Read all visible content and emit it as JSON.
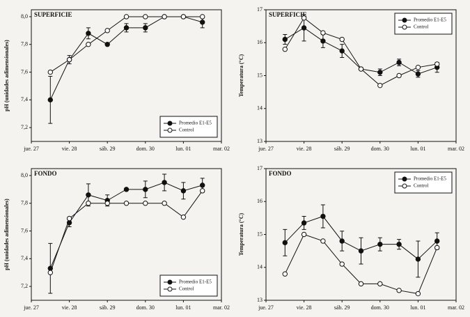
{
  "chart_data": [
    {
      "type": "line",
      "title": "SUPERFICIE",
      "y_label": "pH (unidades adimensionales)",
      "x": [
        0.5,
        1,
        1.5,
        2,
        2.5,
        3,
        3.5,
        4,
        4.5
      ],
      "xlim": [
        0,
        5
      ],
      "xticks": [
        {
          "value": 0,
          "label": "jue. 27"
        },
        {
          "value": 1,
          "label": "vie. 28"
        },
        {
          "value": 2,
          "label": "sáb. 29"
        },
        {
          "value": 3,
          "label": "dom. 30"
        },
        {
          "value": 4,
          "label": "lun. 01"
        },
        {
          "value": 5,
          "label": "mar. 02"
        }
      ],
      "ylim": [
        7.1,
        8.05
      ],
      "yticks": [
        {
          "value": 7.2,
          "label": "7,2"
        },
        {
          "value": 7.4,
          "label": "7,4"
        },
        {
          "value": 7.6,
          "label": "7,6"
        },
        {
          "value": 7.8,
          "label": "7,8"
        },
        {
          "value": 8.0,
          "label": "8,0"
        }
      ],
      "legend": "lower right",
      "series": [
        {
          "name": "Promedio E1-E5",
          "color": "#111111",
          "values": [
            7.4,
            7.69,
            7.88,
            7.8,
            7.92,
            7.92,
            8.0,
            8.0,
            7.96
          ],
          "errors": [
            0.17,
            0.03,
            0.04,
            0,
            0.03,
            0.03,
            0,
            0,
            0.04
          ]
        },
        {
          "name": "Control",
          "color": "#ffffff",
          "values": [
            7.6,
            7.69,
            7.8,
            7.9,
            8.0,
            8.0,
            8.0,
            8.0,
            8.0
          ]
        }
      ]
    },
    {
      "type": "line",
      "title": "SUPERFICIE",
      "y_label": "Temperatura (°C)",
      "x": [
        0.5,
        1,
        1.5,
        2,
        2.5,
        3,
        3.5,
        4,
        4.5
      ],
      "xlim": [
        0,
        5
      ],
      "xticks": [
        {
          "value": 0,
          "label": "jue. 27"
        },
        {
          "value": 1,
          "label": "vie. 28"
        },
        {
          "value": 2,
          "label": "sáb. 29"
        },
        {
          "value": 3,
          "label": "dom. 30"
        },
        {
          "value": 4,
          "label": "lun. 01"
        },
        {
          "value": 5,
          "label": "mar. 02"
        }
      ],
      "ylim": [
        13,
        17
      ],
      "yticks": [
        13,
        14,
        15,
        16,
        17
      ],
      "legend": "upper right",
      "series": [
        {
          "name": "Promedio E1-E5",
          "color": "#111111",
          "values": [
            16.1,
            16.45,
            16.05,
            15.75,
            15.2,
            15.1,
            15.4,
            15.05,
            15.25
          ],
          "errors": [
            0.15,
            0.4,
            0.2,
            0.2,
            0,
            0.1,
            0.1,
            0.1,
            0.15
          ]
        },
        {
          "name": "Control",
          "color": "#ffffff",
          "values": [
            15.8,
            16.75,
            16.3,
            16.1,
            15.2,
            14.7,
            15.0,
            15.25,
            15.35
          ]
        }
      ]
    },
    {
      "type": "line",
      "title": "FONDO",
      "y_label": "pH (unidades adimensionales)",
      "x": [
        0.5,
        1,
        1.5,
        2,
        2.5,
        3,
        3.5,
        4,
        4.5
      ],
      "xlim": [
        0,
        5
      ],
      "xticks": [
        {
          "value": 0,
          "label": "jue. 27"
        },
        {
          "value": 1,
          "label": "vie. 28"
        },
        {
          "value": 2,
          "label": "sáb. 29"
        },
        {
          "value": 3,
          "label": "dom. 30"
        },
        {
          "value": 4,
          "label": "lun. 01"
        },
        {
          "value": 5,
          "label": "mar. 02"
        }
      ],
      "ylim": [
        7.1,
        8.05
      ],
      "yticks": [
        {
          "value": 7.2,
          "label": "7,2"
        },
        {
          "value": 7.4,
          "label": "7,4"
        },
        {
          "value": 7.6,
          "label": "7,6"
        },
        {
          "value": 7.8,
          "label": "7,8"
        },
        {
          "value": 8.0,
          "label": "8,0"
        }
      ],
      "legend": "lower right",
      "series": [
        {
          "name": "Promedio E1-E5",
          "color": "#111111",
          "values": [
            7.33,
            7.66,
            7.86,
            7.82,
            7.9,
            7.9,
            7.95,
            7.89,
            7.93
          ],
          "errors": [
            0.18,
            0.03,
            0.08,
            0.04,
            0,
            0.06,
            0.06,
            0.06,
            0.05
          ]
        },
        {
          "name": "Control",
          "color": "#ffffff",
          "values": [
            7.3,
            7.69,
            7.8,
            7.8,
            7.8,
            7.8,
            7.8,
            7.7,
            7.89
          ]
        }
      ]
    },
    {
      "type": "line",
      "title": "FONDO",
      "y_label": "Temperatura (°C)",
      "x": [
        0.5,
        1,
        1.5,
        2,
        2.5,
        3,
        3.5,
        4,
        4.5
      ],
      "xlim": [
        0,
        5
      ],
      "xticks": [
        {
          "value": 0,
          "label": "jue. 27"
        },
        {
          "value": 1,
          "label": "vie. 28"
        },
        {
          "value": 2,
          "label": "sáb. 29"
        },
        {
          "value": 3,
          "label": "dom. 30"
        },
        {
          "value": 4,
          "label": "lun. 01"
        },
        {
          "value": 5,
          "label": "mar. 02"
        }
      ],
      "ylim": [
        13,
        17
      ],
      "yticks": [
        13,
        14,
        15,
        16,
        17
      ],
      "legend": "upper right",
      "series": [
        {
          "name": "Promedio E1-E5",
          "color": "#111111",
          "values": [
            14.75,
            15.35,
            15.55,
            14.8,
            14.5,
            14.7,
            14.7,
            14.25,
            14.8
          ],
          "errors": [
            0.4,
            0.2,
            0.35,
            0.3,
            0.4,
            0.2,
            0.15,
            0.55,
            0.25
          ]
        },
        {
          "name": "Control",
          "color": "#ffffff",
          "values": [
            13.8,
            15.0,
            14.8,
            14.1,
            13.5,
            13.5,
            13.3,
            13.2,
            14.6
          ]
        }
      ]
    }
  ]
}
